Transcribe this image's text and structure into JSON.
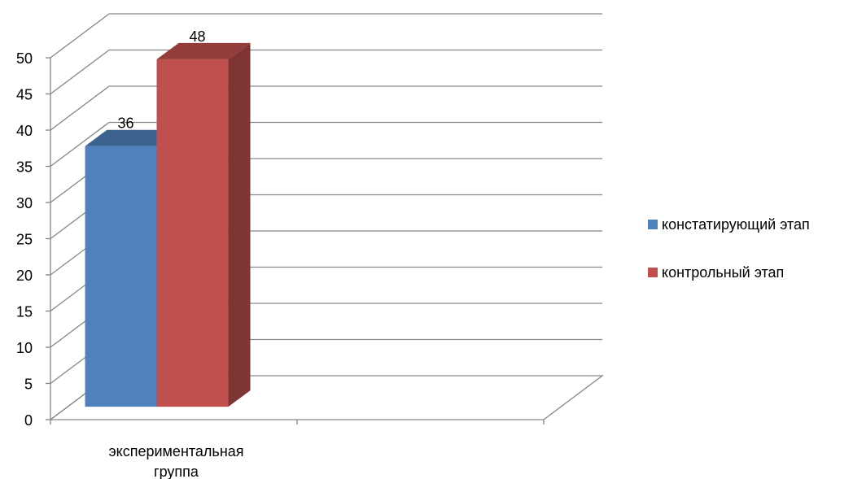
{
  "chart_data": {
    "type": "bar",
    "style": "3d-clustered-column",
    "categories": [
      "экспериментальная группа"
    ],
    "series": [
      {
        "name": "констатирующий этап",
        "values": [
          36
        ],
        "color": "#4f81bd"
      },
      {
        "name": "контрольный этап",
        "values": [
          48
        ],
        "color": "#c0504d"
      }
    ],
    "ylim": [
      0,
      50
    ],
    "yticks": [
      0,
      5,
      10,
      15,
      20,
      25,
      30,
      35,
      40,
      45,
      50
    ],
    "grid": true,
    "legend_position": "right",
    "data_labels": true,
    "title": "",
    "xlabel": "",
    "ylabel": ""
  }
}
